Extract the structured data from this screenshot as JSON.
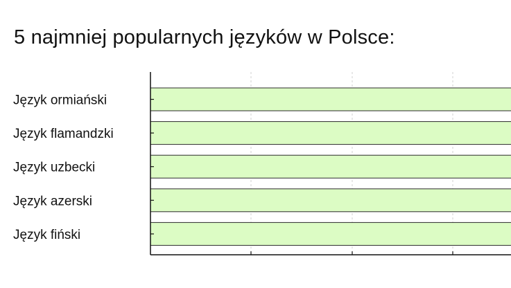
{
  "chart_data": {
    "type": "bar",
    "orientation": "horizontal",
    "title": "5 najmniej popularnych języków w Polsce:",
    "categories": [
      "Język ormiański",
      "Język flamandzki",
      "Język uzbecki",
      "Język azerski",
      "Język fiński"
    ],
    "values": [
      1,
      1,
      1,
      1,
      1
    ],
    "xlim": [
      0,
      1
    ],
    "xlabel": "",
    "ylabel": "",
    "grid": true,
    "colors": {
      "bar_fill": "#dcfcc4",
      "bar_stroke": "#2a2a2a",
      "axis": "#111111",
      "grid": "#d0d0d0"
    }
  }
}
